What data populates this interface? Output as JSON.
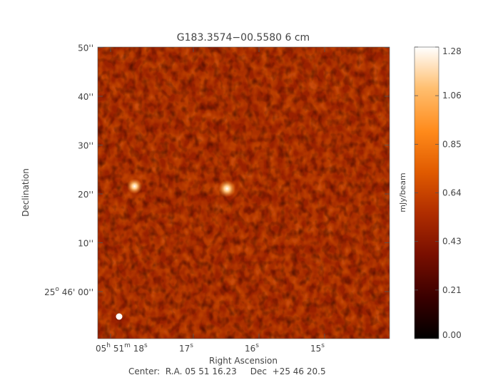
{
  "chart_data": {
    "type": "heatmap",
    "title": "G183.3574−00.5580 6 cm",
    "xlabel": "Right Ascension",
    "ylabel": "Declination",
    "x_ticks": [
      {
        "h": "05",
        "m": "51",
        "s": "18"
      },
      {
        "s": "17"
      },
      {
        "s": "16"
      },
      {
        "s": "15"
      }
    ],
    "y_ticks": [
      {
        "deg": "25",
        "arcmin": "46'",
        "arcsec": "00''"
      },
      {
        "arcsec": "10''"
      },
      {
        "arcsec": "20''"
      },
      {
        "arcsec": "30''"
      },
      {
        "arcsec": "40''"
      },
      {
        "arcsec": "50''"
      }
    ],
    "colorbar": {
      "label": "mJy/beam",
      "range": [
        0.0,
        1.28
      ],
      "tick_labels": [
        "1.28",
        "1.06",
        "0.85",
        "0.64",
        "0.43",
        "0.21",
        "0.00"
      ],
      "colormap": [
        "#000000",
        "#3a0000",
        "#7a0f00",
        "#b02d00",
        "#e05a00",
        "#ff8a1a",
        "#ffbf70",
        "#ffffff"
      ]
    },
    "center_text": "Center:  R.A. 05 51 16.23     Dec  +25 46 20.5",
    "sources": [
      {
        "ra_s": 16.3,
        "dec_arcsec": 21.0,
        "peak": 1.28
      },
      {
        "ra_s": 17.65,
        "dec_arcsec": 21.5,
        "peak": 1.0
      }
    ],
    "beam_marker": "white-filled-circle"
  }
}
